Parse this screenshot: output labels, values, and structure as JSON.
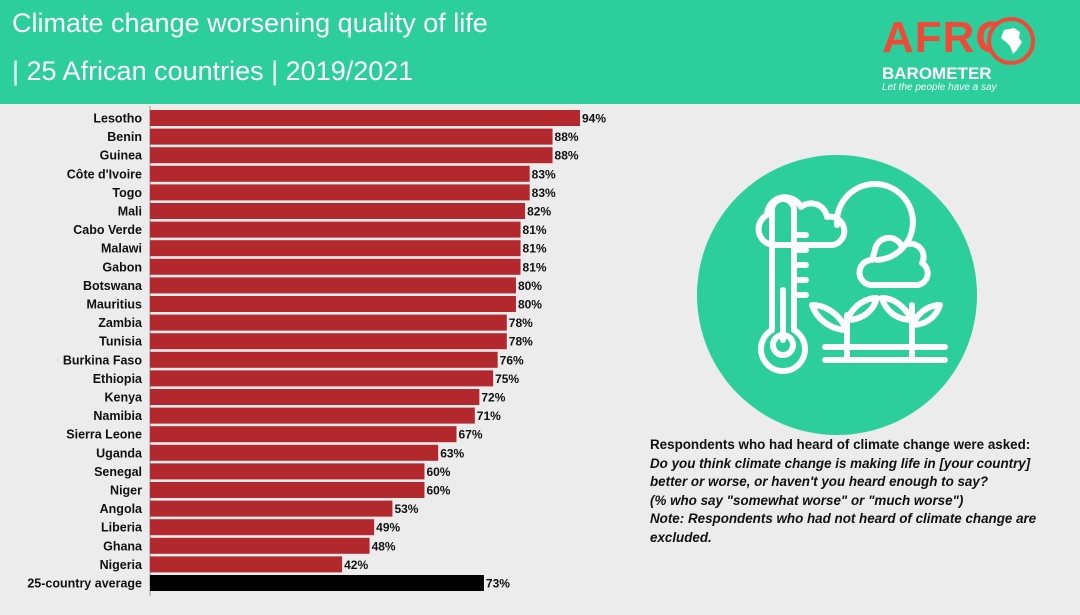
{
  "header": {
    "title_line1": "Climate change worsening quality of life",
    "title_line2": "| 25 African countries | 2019/2021"
  },
  "logo": {
    "afro": "AFRO",
    "barometer": "BAROMETER",
    "tagline": "Let the people have a say"
  },
  "colors": {
    "header_bg": "#2ccf9c",
    "bar": "#b3282d",
    "average_bar": "#000000",
    "accent": "#ef4a37",
    "circle": "#2ccf9c"
  },
  "chart_data": {
    "type": "bar",
    "orientation": "horizontal",
    "title": "Climate change worsening quality of life | 25 African countries | 2019/2021",
    "categories": [
      "Lesotho",
      "Benin",
      "Guinea",
      "Côte d'Ivoire",
      "Togo",
      "Mali",
      "Cabo Verde",
      "Malawi",
      "Gabon",
      "Botswana",
      "Mauritius",
      "Zambia",
      "Tunisia",
      "Burkina Faso",
      "Ethiopia",
      "Kenya",
      "Namibia",
      "Sierra Leone",
      "Uganda",
      "Senegal",
      "Niger",
      "Angola",
      "Liberia",
      "Ghana",
      "Nigeria",
      "25-country average"
    ],
    "values": [
      94,
      88,
      88,
      83,
      83,
      82,
      81,
      81,
      81,
      80,
      80,
      78,
      78,
      76,
      75,
      72,
      71,
      67,
      63,
      60,
      60,
      53,
      49,
      48,
      42,
      73
    ],
    "labels": [
      "94%",
      "88%",
      "88%",
      "83%",
      "83%",
      "82%",
      "81%",
      "81%",
      "81%",
      "80%",
      "80%",
      "78%",
      "78%",
      "76%",
      "75%",
      "72%",
      "71%",
      "67%",
      "63%",
      "60%",
      "60%",
      "53%",
      "49%",
      "48%",
      "42%",
      "73%"
    ],
    "highlight_last": true,
    "xlim": [
      0,
      100
    ],
    "xlabel": "",
    "ylabel": "",
    "unit": "%"
  },
  "note": {
    "line1": "Respondents who had heard of climate change were asked:",
    "line2": "Do you think climate change is making life in [your country] better or worse, or haven't you heard enough to say?",
    "line3": "(% who say \"somewhat worse\" or \"much worse\")",
    "note_label": "Note:",
    "note_text": "Respondents who had not heard of climate change are excluded."
  },
  "illustration": {
    "icon": "climate-thermometer-icon"
  }
}
